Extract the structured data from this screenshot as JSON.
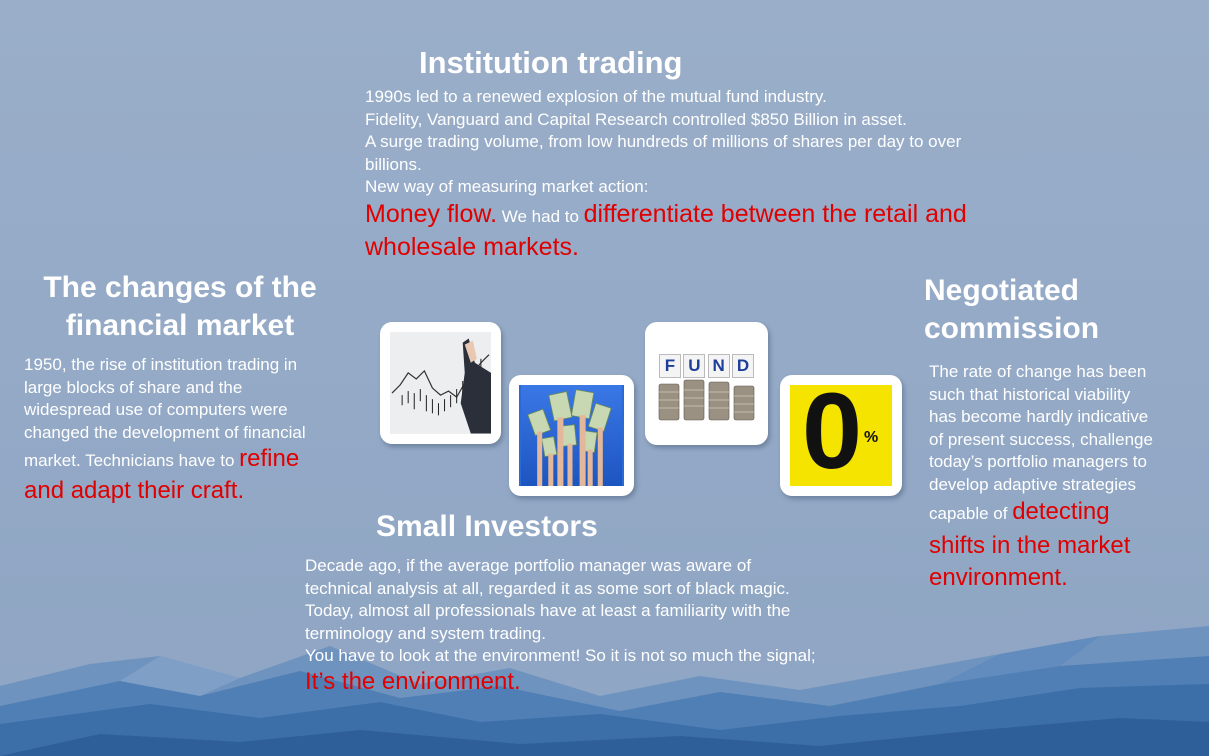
{
  "institution": {
    "title": "Institution trading",
    "lines": [
      "1990s led to a renewed explosion of the mutual fund industry.",
      "Fidelity, Vanguard and Capital Research controlled $850 Billion in asset.",
      "A surge trading volume, from low hundreds of millions of shares per day to over",
      "billions.",
      "New way of measuring market action:"
    ],
    "red1": "Money flow",
    "dot": ".",
    "mid": " We had to ",
    "red2": "differentiate between the retail and",
    "red3": "wholesale markets."
  },
  "changes": {
    "title1": "The changes of the",
    "title2": "financial market",
    "lines": [
      "1950, the rise of institution trading in",
      "large blocks of share and the",
      "widespread use of computers were",
      "changed the development of financial"
    ],
    "line5": "market. Technicians have to ",
    "red1": "refine",
    "red2": "and adapt their craft."
  },
  "negotiated": {
    "title1": "Negotiated",
    "title2": "commission",
    "lines": [
      "The rate of change has been",
      "such that historical viability",
      "has become hardly indicative",
      "of present success, challenge",
      "today’s portfolio managers to",
      "develop adaptive strategies"
    ],
    "line7": "capable of ",
    "red1": "detecting",
    "red2": "shifts in the market",
    "red3": "environment."
  },
  "small": {
    "title": "Small Investors",
    "lines": [
      "Decade ago, if the average portfolio manager was aware of",
      "technical analysis at all, regarded it as some sort of black magic.",
      "Today, almost all professionals have at least a familiarity with the",
      "terminology and system trading.",
      "You have to look at the environment! So it is not so much the signal;"
    ],
    "red1": "It’s the environment."
  },
  "images": {
    "fund_letters": [
      "F",
      "U",
      "N",
      "D"
    ],
    "zero_text": "0",
    "percent_text": "%"
  },
  "colors": {
    "background": "#9aaec9",
    "accent_red": "#e00000",
    "text": "#ffffff",
    "zero_yellow": "#f5e400"
  }
}
